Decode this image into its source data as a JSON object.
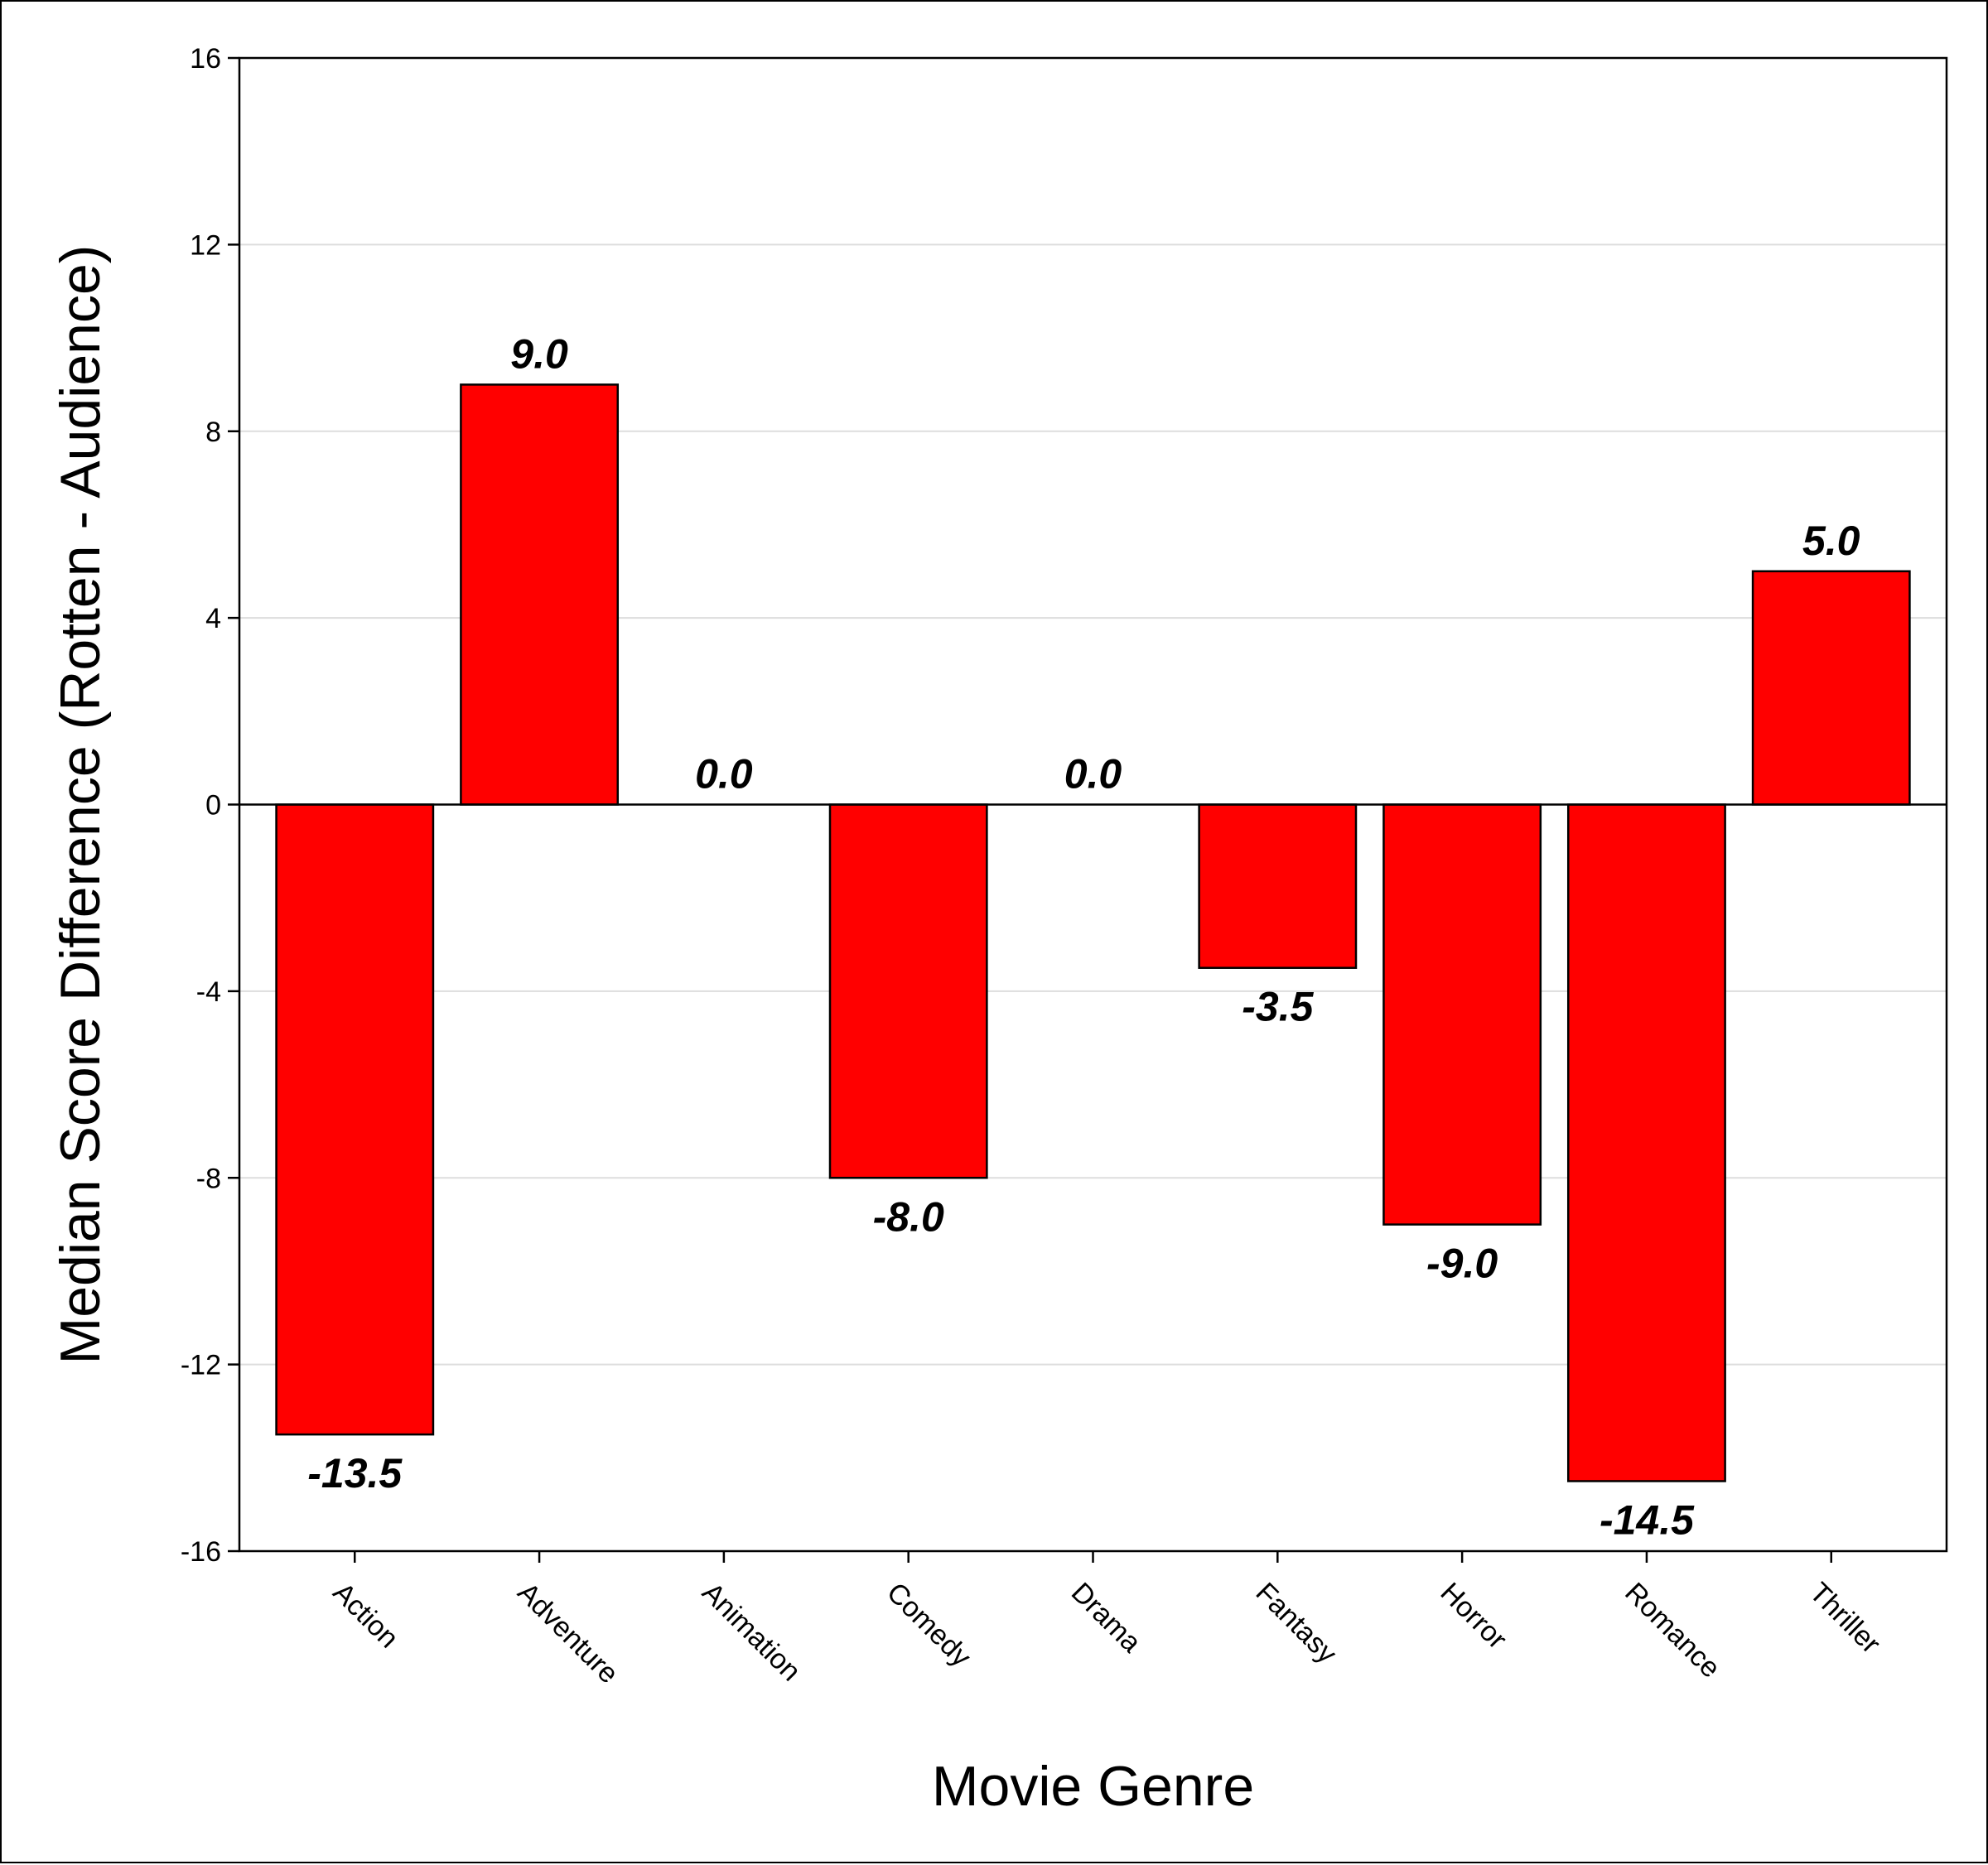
{
  "chart_data": {
    "type": "bar",
    "categories": [
      "Action",
      "Adventure",
      "Animation",
      "Comedy",
      "Drama",
      "Fantasy",
      "Horror",
      "Romance",
      "Thriller"
    ],
    "values": [
      -13.5,
      9.0,
      0.0,
      -8.0,
      0.0,
      -3.5,
      -9.0,
      -14.5,
      5.0
    ],
    "data_labels": [
      "-13.5",
      "9.0",
      "0.0",
      "-8.0",
      "0.0",
      "-3.5",
      "-9.0",
      "-14.5",
      "5.0"
    ],
    "title": "",
    "xlabel": "Movie Genre",
    "ylabel": "Median Score Difference (Rotten - Audience)",
    "ylim": [
      -16,
      16
    ],
    "yticks": [
      16,
      12,
      8,
      4,
      0,
      -4,
      -8,
      -12,
      -16
    ],
    "ytick_labels": [
      "16",
      "12",
      "8",
      "4",
      "0",
      "-4",
      "-8",
      "-12",
      "-16"
    ],
    "grid": "horizontal",
    "legend": "none",
    "bar_color": "#ff0000",
    "bar_edge_color": "#000000",
    "gridline_color": "#dddddd"
  }
}
